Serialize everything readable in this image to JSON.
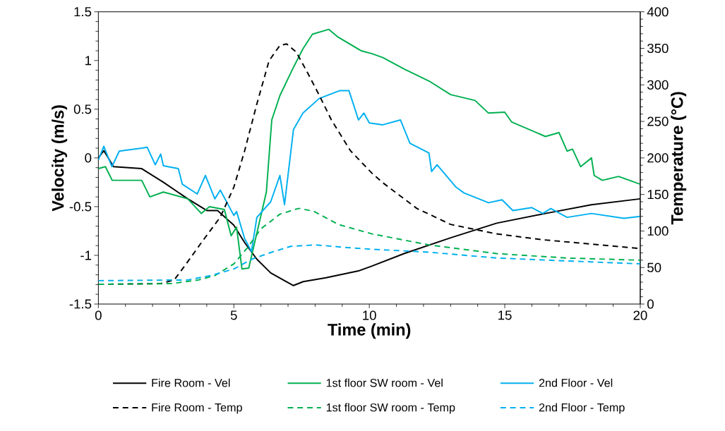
{
  "chart_data": {
    "type": "line",
    "xlabel": "Time (min)",
    "ylabel": "Velocity (m/s)",
    "y2label": "Temperature (°C)",
    "xlim": [
      0,
      20
    ],
    "xticks": [
      0,
      5,
      10,
      15,
      20
    ],
    "ylim": [
      -1.5,
      1.5
    ],
    "yticks": [
      -1.5,
      -1,
      -0.5,
      0,
      0.5,
      1,
      1.5
    ],
    "y2lim": [
      0,
      400
    ],
    "y2ticks": [
      0,
      50,
      100,
      150,
      200,
      250,
      300,
      350,
      400
    ],
    "legend": "bottom",
    "marker": "none",
    "grid": false,
    "series": [
      {
        "name": "Fire Room - Vel",
        "color": "#000000",
        "line_style": "solid",
        "x": [
          0,
          0.2,
          0.56,
          1.6,
          2.4,
          3.3,
          4.0,
          4.4,
          5.0,
          5.4,
          5.85,
          6.36,
          6.87,
          7.2,
          7.56,
          8.4,
          9.6,
          10.1,
          11.3,
          13.0,
          14.7,
          16.5,
          18.2,
          20
        ],
        "values": [
          0.0,
          0.075,
          -0.09,
          -0.11,
          -0.25,
          -0.42,
          -0.54,
          -0.54,
          -0.69,
          -0.87,
          -1.04,
          -1.18,
          -1.26,
          -1.31,
          -1.27,
          -1.23,
          -1.16,
          -1.11,
          -0.98,
          -0.82,
          -0.67,
          -0.57,
          -0.48,
          -0.42
        ]
      },
      {
        "name": "1st floor SW room - Vel",
        "color": "#00b050",
        "line_style": "solid",
        "x": [
          0,
          0.26,
          0.51,
          1.6,
          1.9,
          2.4,
          3.3,
          3.8,
          4.1,
          4.65,
          4.9,
          5.1,
          5.3,
          5.55,
          5.9,
          6.2,
          6.4,
          6.7,
          7.2,
          7.55,
          7.9,
          8.5,
          8.85,
          9.7,
          10.1,
          10.5,
          11.3,
          12.2,
          13.0,
          13.9,
          14.4,
          15.0,
          15.25,
          16.5,
          17.0,
          17.3,
          17.5,
          17.8,
          18.2,
          18.3,
          18.6,
          19.2,
          20
        ],
        "values": [
          -0.11,
          -0.09,
          -0.23,
          -0.23,
          -0.4,
          -0.35,
          -0.42,
          -0.57,
          -0.5,
          -0.53,
          -0.8,
          -0.71,
          -1.14,
          -1.13,
          -0.71,
          -0.35,
          0.39,
          0.64,
          0.93,
          1.12,
          1.27,
          1.32,
          1.24,
          1.1,
          1.07,
          1.03,
          0.91,
          0.79,
          0.65,
          0.59,
          0.46,
          0.47,
          0.37,
          0.22,
          0.26,
          0.07,
          0.09,
          -0.09,
          0.0,
          -0.18,
          -0.23,
          -0.19,
          -0.27
        ]
      },
      {
        "name": "2nd Floor - Vel",
        "color": "#00b0f0",
        "line_style": "solid",
        "x": [
          0,
          0.2,
          0.5,
          0.77,
          1.6,
          1.8,
          2.1,
          2.3,
          2.4,
          2.95,
          3.1,
          3.65,
          3.95,
          4.3,
          4.5,
          5.0,
          5.1,
          5.4,
          5.65,
          5.85,
          6.36,
          6.7,
          6.87,
          7.2,
          7.55,
          8.15,
          8.9,
          9.25,
          9.6,
          9.8,
          10.0,
          10.5,
          11.15,
          11.5,
          12.2,
          12.3,
          12.5,
          13.2,
          13.5,
          14.4,
          14.9,
          15.3,
          16.0,
          16.4,
          16.7,
          17.3,
          18.2,
          19.4,
          20
        ],
        "values": [
          -0.02,
          0.12,
          -0.09,
          0.07,
          0.1,
          0.11,
          -0.07,
          0.04,
          -0.08,
          -0.11,
          -0.27,
          -0.37,
          -0.18,
          -0.42,
          -0.33,
          -0.59,
          -0.55,
          -0.83,
          -0.96,
          -0.61,
          -0.45,
          -0.18,
          -0.48,
          0.29,
          0.46,
          0.61,
          0.69,
          0.69,
          0.39,
          0.46,
          0.36,
          0.34,
          0.39,
          0.15,
          0.05,
          -0.14,
          -0.07,
          -0.3,
          -0.36,
          -0.46,
          -0.43,
          -0.54,
          -0.51,
          -0.57,
          -0.52,
          -0.61,
          -0.57,
          -0.62,
          -0.6
        ]
      },
      {
        "name": "Fire Room - Temp",
        "color": "#000000",
        "line_style": "dashed",
        "axis": "y2",
        "x": [
          0,
          2.3,
          2.8,
          3.3,
          3.8,
          4.5,
          5.0,
          5.4,
          5.85,
          6.3,
          6.7,
          6.95,
          7.3,
          7.7,
          8.15,
          8.6,
          9.3,
          10.1,
          10.5,
          11.75,
          13.0,
          14.7,
          16.4,
          18.2,
          20
        ],
        "values": [
          27,
          28,
          33,
          58,
          84,
          119,
          160,
          210,
          274,
          333,
          354,
          356,
          345,
          318,
          286,
          252,
          210,
          179,
          166,
          131,
          109,
          96,
          88,
          82,
          76
        ]
      },
      {
        "name": "1st floor SW room - Temp",
        "color": "#00b050",
        "line_style": "dashed",
        "axis": "y2",
        "x": [
          0,
          2.7,
          3.7,
          4.3,
          5.0,
          5.5,
          6.0,
          6.7,
          7.4,
          7.95,
          8.85,
          10.1,
          12.2,
          14.7,
          17.3,
          20
        ],
        "values": [
          27,
          28,
          33,
          39,
          55,
          77,
          103,
          123,
          131,
          127,
          109,
          96,
          81,
          69,
          63,
          60
        ]
      },
      {
        "name": "2nd Floor - Temp",
        "color": "#00b0f0",
        "line_style": "dashed",
        "axis": "y2",
        "x": [
          0,
          3.3,
          4.15,
          5.0,
          5.7,
          6.4,
          7.1,
          8.0,
          9.3,
          10.1,
          12.2,
          14.7,
          17.3,
          20
        ],
        "values": [
          32,
          33,
          39,
          48,
          62,
          71,
          79,
          81,
          77,
          75,
          71,
          63,
          59,
          55
        ]
      }
    ]
  }
}
